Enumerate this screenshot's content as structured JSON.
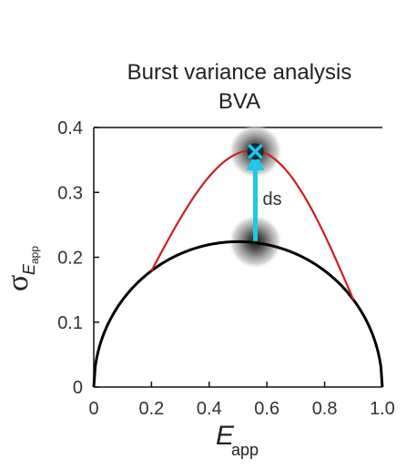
{
  "chart_data": {
    "type": "scatter",
    "title": "Burst variance analysis",
    "subtitle": "BVA",
    "xlabel": "E",
    "xlabel_sub": "app",
    "ylabel": "σ",
    "ylabel_sub": "E",
    "ylabel_subsub": "app",
    "xlim": [
      0,
      1.0
    ],
    "ylim": [
      0,
      0.4
    ],
    "x_ticks": [
      "0",
      "0.2",
      "0.4",
      "0.6",
      "0.8",
      "1.0"
    ],
    "y_ticks": [
      "0",
      "0.1",
      "0.2",
      "0.3",
      "0.4"
    ],
    "grid": false,
    "series": [
      {
        "color": "#000000",
        "curve": "sqrt(E(1-E)/N)",
        "x_range": [
          0,
          1
        ],
        "peak": 0.224
      },
      {
        "color": "#cc1f1f",
        "x_range": [
          0.2,
          0.9
        ],
        "peak": 0.365
      },
      {
        "color": "#1ec8e8",
        "type": "arrow",
        "from": [
          0.56,
          0.225
        ],
        "to": [
          0.56,
          0.365
        ]
      }
    ],
    "points": [
      {
        "x": 0.56,
        "y": 0.224,
        "marker": "dot",
        "color": "#111111"
      },
      {
        "x": 0.56,
        "y": 0.363,
        "marker": "x",
        "color": "#1ec8e8"
      }
    ],
    "annotations": [
      {
        "text": "ds",
        "color": "#1ec8e8"
      }
    ]
  }
}
